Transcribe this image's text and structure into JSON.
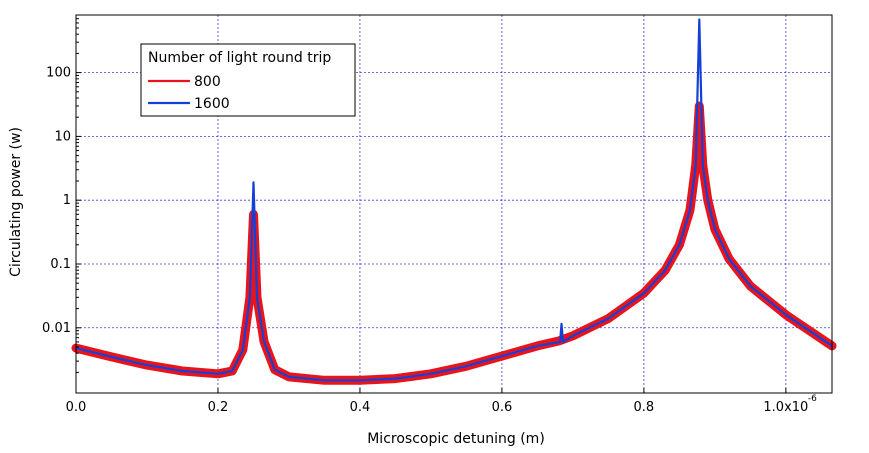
{
  "colors": {
    "background": "#ffffff",
    "grid": "#3b3bd9",
    "series_800": "#e8141c",
    "series_1600": "#1540d8"
  },
  "chart_data": {
    "type": "line",
    "xlabel": "Microscopic detuning (m)",
    "ylabel": "Circulating power (w)",
    "x_scale_label": "-6",
    "xlim": [
      0.0,
      1.065e-06
    ],
    "ylim": [
      0.00095,
      800
    ],
    "yscale": "log",
    "grid": true,
    "legend": {
      "title": "Number of light round trip",
      "position": "top-left"
    },
    "x_ticks": [
      {
        "value": 0.0,
        "label": "0.0"
      },
      {
        "value": 2e-07,
        "label": "0.2"
      },
      {
        "value": 4e-07,
        "label": "0.4"
      },
      {
        "value": 6e-07,
        "label": "0.6"
      },
      {
        "value": 8e-07,
        "label": "0.8"
      },
      {
        "value": 1e-06,
        "label": "1.0x10"
      }
    ],
    "y_ticks": [
      {
        "value": 0.01,
        "label": "0.01"
      },
      {
        "value": 0.1,
        "label": "0.1"
      },
      {
        "value": 1,
        "label": "1"
      },
      {
        "value": 10,
        "label": "10"
      },
      {
        "value": 100,
        "label": "100"
      }
    ],
    "series": [
      {
        "name": "800",
        "color": "#e8141c",
        "x": [
          0.0,
          5e-08,
          1e-07,
          1.5e-07,
          2e-07,
          2.2e-07,
          2.35e-07,
          2.45e-07,
          2.5e-07,
          2.55e-07,
          2.65e-07,
          2.8e-07,
          3e-07,
          3.5e-07,
          4e-07,
          4.5e-07,
          5e-07,
          5.5e-07,
          6e-07,
          6.5e-07,
          6.8e-07,
          7e-07,
          7.5e-07,
          8e-07,
          8.3e-07,
          8.5e-07,
          8.65e-07,
          8.73e-07,
          8.78e-07,
          8.83e-07,
          8.9e-07,
          9e-07,
          9.2e-07,
          9.5e-07,
          1e-06,
          1.03e-06,
          1.065e-06
        ],
        "y": [
          0.0048,
          0.0035,
          0.0026,
          0.0021,
          0.0019,
          0.0021,
          0.0045,
          0.03,
          0.6,
          0.03,
          0.006,
          0.0022,
          0.0017,
          0.0015,
          0.0015,
          0.0016,
          0.0019,
          0.0025,
          0.0036,
          0.0052,
          0.0062,
          0.0075,
          0.014,
          0.035,
          0.08,
          0.2,
          0.7,
          3.5,
          30,
          3.5,
          1.0,
          0.35,
          0.12,
          0.045,
          0.016,
          0.0095,
          0.0052
        ]
      },
      {
        "name": "1600",
        "color": "#1540d8",
        "x": [
          0.0,
          5e-08,
          1e-07,
          1.5e-07,
          2e-07,
          2.2e-07,
          2.35e-07,
          2.45e-07,
          2.5e-07,
          2.55e-07,
          2.65e-07,
          2.8e-07,
          3e-07,
          3.5e-07,
          4e-07,
          4.5e-07,
          5e-07,
          5.5e-07,
          6e-07,
          6.5e-07,
          6.82e-07,
          6.84e-07,
          6.86e-07,
          7e-07,
          7.5e-07,
          8e-07,
          8.3e-07,
          8.5e-07,
          8.65e-07,
          8.73e-07,
          8.78e-07,
          8.83e-07,
          8.9e-07,
          9e-07,
          9.2e-07,
          9.5e-07,
          1e-06,
          1.03e-06,
          1.065e-06
        ],
        "y": [
          0.0048,
          0.0035,
          0.0026,
          0.0021,
          0.0019,
          0.0021,
          0.0045,
          0.03,
          1.9,
          0.03,
          0.006,
          0.0022,
          0.0017,
          0.0015,
          0.0015,
          0.0016,
          0.0019,
          0.0025,
          0.0036,
          0.0052,
          0.006,
          0.0115,
          0.006,
          0.0075,
          0.014,
          0.035,
          0.08,
          0.2,
          0.7,
          3.5,
          680,
          3.5,
          1.0,
          0.35,
          0.12,
          0.045,
          0.016,
          0.0095,
          0.0052
        ]
      }
    ]
  }
}
